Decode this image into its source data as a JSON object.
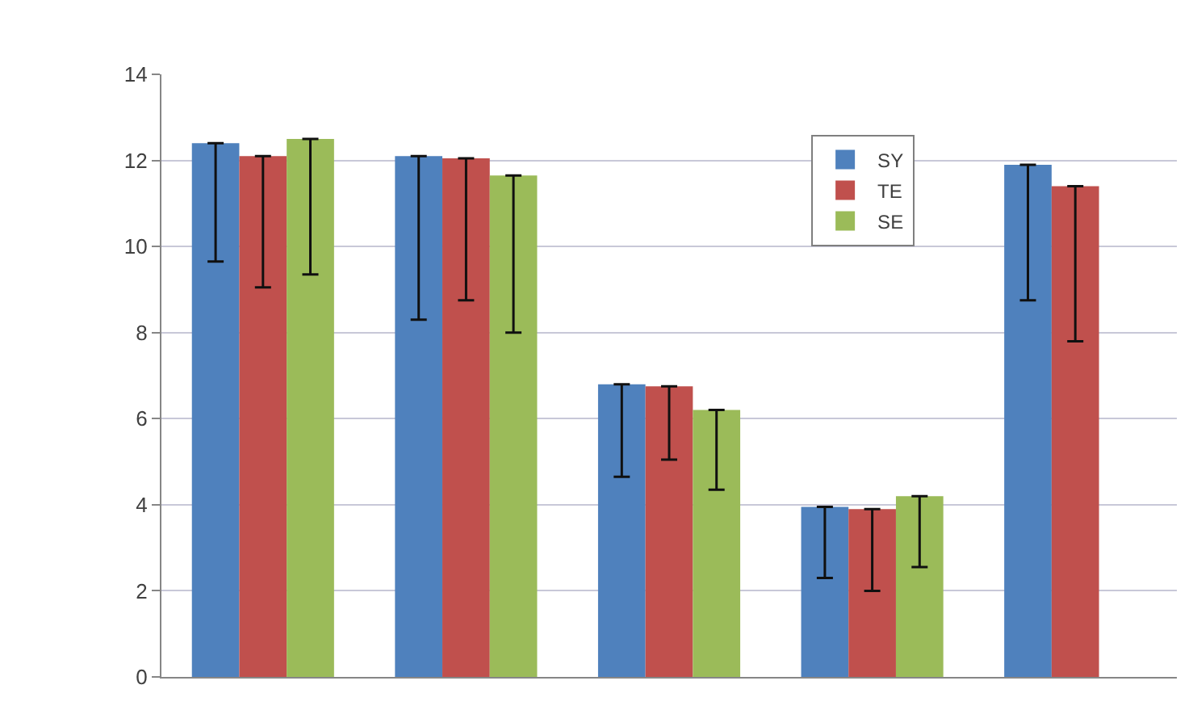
{
  "chart_data": {
    "type": "bar",
    "categories": [
      null,
      null,
      null,
      null,
      null
    ],
    "series": [
      {
        "name": "SY",
        "color": "#4f81bd",
        "values": [
          12.4,
          12.1,
          6.8,
          3.95,
          11.9
        ],
        "errors": [
          [
            9.65,
            12.4
          ],
          [
            8.3,
            12.1
          ],
          [
            4.65,
            6.8
          ],
          [
            2.3,
            3.95
          ],
          [
            8.75,
            11.9
          ]
        ]
      },
      {
        "name": "TE",
        "color": "#c0504d",
        "values": [
          12.1,
          12.05,
          6.75,
          3.9,
          11.4
        ],
        "errors": [
          [
            9.05,
            12.1
          ],
          [
            8.75,
            12.05
          ],
          [
            5.05,
            6.75
          ],
          [
            2.0,
            3.9
          ],
          [
            7.8,
            11.4
          ]
        ]
      },
      {
        "name": "SE",
        "color": "#9bbb59",
        "values": [
          12.5,
          11.65,
          6.2,
          4.2,
          null
        ],
        "errors": [
          [
            9.35,
            12.5
          ],
          [
            8.0,
            11.65
          ],
          [
            4.35,
            6.2
          ],
          [
            2.55,
            4.2
          ],
          null
        ]
      }
    ],
    "ylim": [
      0,
      14
    ],
    "yticks": [
      0,
      2,
      4,
      6,
      8,
      10,
      12,
      14
    ],
    "grid": "y",
    "legend": "top right"
  }
}
